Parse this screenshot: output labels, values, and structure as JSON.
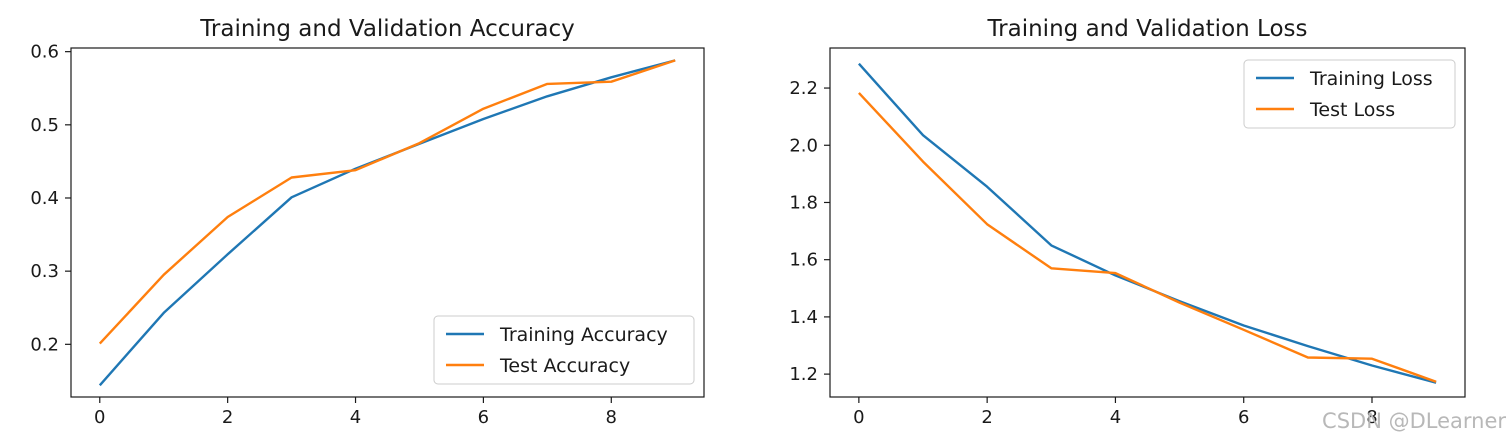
{
  "watermark": "CSDN @DLearner",
  "chart_data": [
    {
      "type": "line",
      "title": "Training and Validation Accuracy",
      "xlabel": "",
      "ylabel": "",
      "xlim": [
        -0.45,
        9.45
      ],
      "ylim": [
        0.128,
        0.605
      ],
      "xticks": [
        0,
        2,
        4,
        6,
        8
      ],
      "yticks": [
        0.2,
        0.3,
        0.4,
        0.5,
        0.6
      ],
      "ytick_labels": [
        "0.2",
        "0.3",
        "0.4",
        "0.5",
        "0.6"
      ],
      "x": [
        0,
        1,
        2,
        3,
        4,
        5,
        6,
        7,
        8,
        9
      ],
      "series": [
        {
          "name": "Training Accuracy",
          "color": "#1f77b4",
          "values": [
            0.144,
            0.243,
            0.323,
            0.401,
            0.44,
            0.474,
            0.508,
            0.539,
            0.565,
            0.588
          ]
        },
        {
          "name": "Test Accuracy",
          "color": "#ff7f0e",
          "values": [
            0.201,
            0.295,
            0.374,
            0.428,
            0.438,
            0.475,
            0.522,
            0.556,
            0.559,
            0.588
          ]
        }
      ],
      "legend": "lower right",
      "grid": false
    },
    {
      "type": "line",
      "title": "Training and Validation Loss",
      "xlabel": "",
      "ylabel": "",
      "xlim": [
        -0.45,
        9.45
      ],
      "ylim": [
        1.12,
        2.34
      ],
      "xticks": [
        0,
        2,
        4,
        6,
        8
      ],
      "yticks": [
        1.2,
        1.4,
        1.6,
        1.8,
        2.0,
        2.2
      ],
      "ytick_labels": [
        "1.2",
        "1.4",
        "1.6",
        "1.8",
        "2.0",
        "2.2"
      ],
      "x": [
        0,
        1,
        2,
        3,
        4,
        5,
        6,
        7,
        8,
        9
      ],
      "series": [
        {
          "name": "Training Loss",
          "color": "#1f77b4",
          "values": [
            2.285,
            2.035,
            1.855,
            1.65,
            1.545,
            1.455,
            1.37,
            1.298,
            1.23,
            1.17
          ]
        },
        {
          "name": "Test Loss",
          "color": "#ff7f0e",
          "values": [
            2.183,
            1.943,
            1.724,
            1.57,
            1.553,
            1.45,
            1.355,
            1.258,
            1.254,
            1.173
          ]
        }
      ],
      "legend": "upper right",
      "grid": false
    }
  ]
}
